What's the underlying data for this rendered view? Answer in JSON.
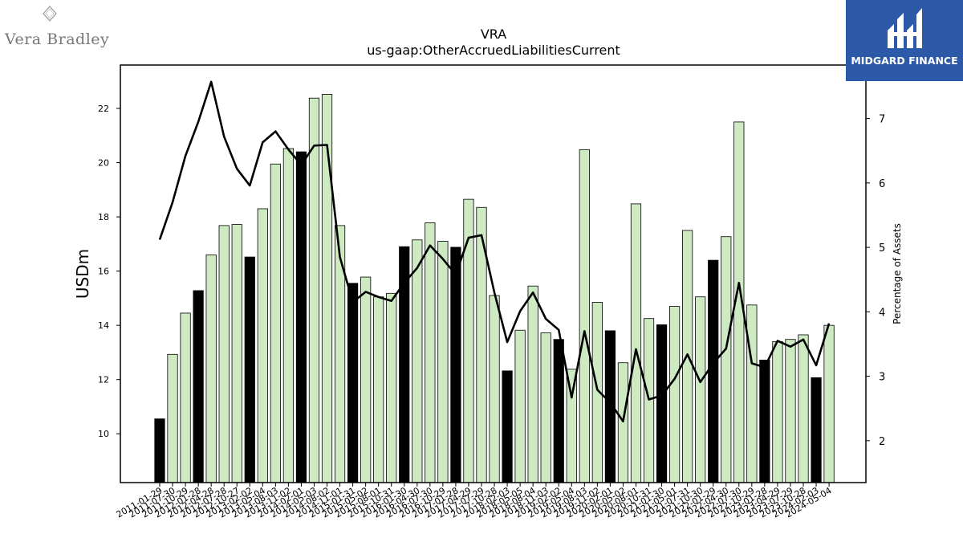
{
  "brand_left": {
    "name": "Vera Bradley",
    "icon": "vb-diamond-monogram-icon"
  },
  "brand_right": {
    "name": "MIDGARD FINANCE",
    "icon": "mh-monogram-icon"
  },
  "colors": {
    "bar_fill": "#cdeac3",
    "bar_highlight": "#000000",
    "line": "#000000",
    "mf_background": "#2c5aa8"
  },
  "chart_data": {
    "type": "bar",
    "title": "VRA",
    "subtitle": "us-gaap:OtherAccruedLiabilitiesCurrent",
    "ylabel": "USDm",
    "y2label": "Percentage of Assets",
    "ylim": [
      8.2,
      23.6
    ],
    "y_ticks": [
      10,
      12,
      14,
      16,
      18,
      20,
      22
    ],
    "y2lim": [
      1.35,
      7.83
    ],
    "y2_ticks": [
      2,
      3,
      4,
      5,
      6,
      7
    ],
    "categories": [
      "2011-01-29",
      "2011-07-30",
      "2011-10-29",
      "2012-01-28",
      "2012-04-28",
      "2012-07-28",
      "2012-10-27",
      "2013-02-02",
      "2013-05-04",
      "2013-08-03",
      "2013-11-02",
      "2014-02-01",
      "2014-05-03",
      "2014-08-02",
      "2014-11-01",
      "2015-01-31",
      "2015-05-02",
      "2015-08-01",
      "2015-10-31",
      "2016-01-30",
      "2016-04-30",
      "2016-07-30",
      "2016-10-29",
      "2017-01-28",
      "2017-04-29",
      "2017-07-29",
      "2017-10-28",
      "2018-02-03",
      "2018-05-05",
      "2018-08-04",
      "2018-11-03",
      "2019-02-02",
      "2019-05-04",
      "2019-08-03",
      "2019-11-02",
      "2020-02-01",
      "2020-05-02",
      "2020-08-01",
      "2020-10-31",
      "2021-01-30",
      "2021-05-01",
      "2021-07-31",
      "2021-10-30",
      "2022-01-29",
      "2022-04-30",
      "2022-07-30",
      "2022-10-29",
      "2023-01-28",
      "2023-04-29",
      "2023-07-29",
      "2023-10-28",
      "2024-02-03",
      "2024-05-04"
    ],
    "series": [
      {
        "axis": "left",
        "kind": "bar",
        "values": [
          10.55,
          12.93,
          14.45,
          15.28,
          16.6,
          17.68,
          17.72,
          16.52,
          18.3,
          19.95,
          20.52,
          20.4,
          22.38,
          22.52,
          17.68,
          15.55,
          15.78,
          15.05,
          15.18,
          16.9,
          17.15,
          17.78,
          17.1,
          16.88,
          18.65,
          18.35,
          15.1,
          12.32,
          13.82,
          15.45,
          13.72,
          13.48,
          12.38,
          20.48,
          14.85,
          13.8,
          12.62,
          18.48,
          14.25,
          14.02,
          14.7,
          17.5,
          15.05,
          16.4,
          17.27,
          21.5,
          14.75,
          12.72,
          13.4,
          13.48,
          13.65,
          12.07,
          14.0
        ],
        "highlighted": [
          true,
          false,
          false,
          true,
          false,
          false,
          false,
          true,
          false,
          false,
          false,
          true,
          false,
          false,
          false,
          true,
          false,
          false,
          false,
          true,
          false,
          false,
          false,
          true,
          false,
          false,
          false,
          true,
          false,
          false,
          false,
          true,
          false,
          false,
          false,
          true,
          false,
          false,
          false,
          true,
          false,
          false,
          false,
          true,
          false,
          false,
          false,
          true,
          false,
          false,
          false,
          true,
          false
        ]
      },
      {
        "axis": "right",
        "kind": "line",
        "values": [
          5.12,
          5.7,
          6.42,
          6.95,
          7.57,
          6.72,
          6.22,
          5.96,
          6.63,
          6.8,
          6.52,
          6.28,
          6.58,
          6.59,
          4.85,
          4.15,
          4.31,
          4.23,
          4.17,
          4.45,
          4.68,
          5.03,
          4.82,
          4.58,
          5.15,
          5.19,
          4.3,
          3.53,
          4.01,
          4.3,
          3.89,
          3.72,
          2.67,
          3.7,
          2.79,
          2.59,
          2.3,
          3.42,
          2.64,
          2.7,
          2.96,
          3.34,
          2.91,
          3.2,
          3.43,
          4.45,
          3.2,
          3.14,
          3.55,
          3.46,
          3.57,
          3.17,
          3.82
        ]
      }
    ],
    "grid": false,
    "legend": "none"
  }
}
